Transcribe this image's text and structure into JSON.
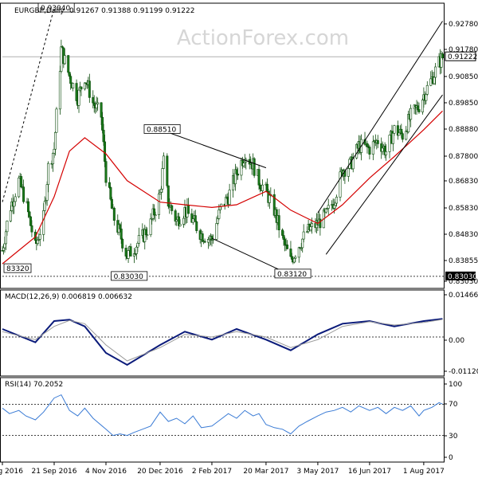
{
  "header": {
    "symbol": "EURGBP,Daily",
    "values": "0.91267 0.91388 0.91199 0.91222",
    "watermark": "ActionForex.com"
  },
  "chart_data": [
    {
      "type": "candlestick",
      "panel": "price",
      "y_ticks": [
        "0.92780",
        "0.91780",
        "0.90850",
        "0.89850",
        "0.88880",
        "0.87800",
        "0.86830",
        "0.85830",
        "0.84830",
        "0.83855",
        "0.83030"
      ],
      "ylim": [
        0.827,
        0.931
      ],
      "current_price": "0.91222",
      "support_level": "0.83030",
      "annotations": [
        {
          "label": "0.93040",
          "x": "21 Sep 2016",
          "y": 0.9304
        },
        {
          "label": "0.88510",
          "x": "20 Dec 2016",
          "y": 0.8851
        },
        {
          "label": "83320",
          "x": "8 Aug 2016",
          "y": 0.8332
        },
        {
          "label": "0.83030",
          "x": "22 Nov 2016",
          "y": 0.8303
        },
        {
          "label": "0.83120",
          "x": "10 Apr 2017",
          "y": 0.8312
        }
      ],
      "close_path": [
        [
          "8 Aug 2016",
          0.84
        ],
        [
          "14 Aug 2016",
          0.855
        ],
        [
          "22 Aug 2016",
          0.866
        ],
        [
          "28 Aug 2016",
          0.858
        ],
        [
          "5 Sep 2016",
          0.841
        ],
        [
          "12 Sep 2016",
          0.852
        ],
        [
          "16 Sep 2016",
          0.871
        ],
        [
          "21 Sep 2016",
          0.878
        ],
        [
          "27 Sep 2016",
          0.915
        ],
        [
          "4 Oct 2016",
          0.905
        ],
        [
          "11 Oct 2016",
          0.897
        ],
        [
          "17 Oct 2016",
          0.905
        ],
        [
          "24 Oct 2016",
          0.895
        ],
        [
          "31 Oct 2016",
          0.89
        ],
        [
          "4 Nov 2016",
          0.868
        ],
        [
          "10 Nov 2016",
          0.853
        ],
        [
          "16 Nov 2016",
          0.846
        ],
        [
          "22 Nov 2016",
          0.838
        ],
        [
          "28 Nov 2016",
          0.841
        ],
        [
          "5 Dec 2016",
          0.845
        ],
        [
          "12 Dec 2016",
          0.85
        ],
        [
          "20 Dec 2016",
          0.861
        ],
        [
          "23 Dec 2016",
          0.873
        ],
        [
          "27 Dec 2016",
          0.858
        ],
        [
          "3 Jan 2017",
          0.851
        ],
        [
          "10 Jan 2017",
          0.855
        ],
        [
          "17 Jan 2017",
          0.851
        ],
        [
          "24 Jan 2017",
          0.846
        ],
        [
          "2 Feb 2017",
          0.844
        ],
        [
          "9 Feb 2017",
          0.855
        ],
        [
          "16 Feb 2017",
          0.86
        ],
        [
          "23 Feb 2017",
          0.869
        ],
        [
          "2 Mar 2017",
          0.876
        ],
        [
          "9 Mar 2017",
          0.872
        ],
        [
          "14 Mar 2017",
          0.866
        ],
        [
          "20 Mar 2017",
          0.862
        ],
        [
          "27 Mar 2017",
          0.855
        ],
        [
          "3 Apr 2017",
          0.844
        ],
        [
          "10 Apr 2017",
          0.836
        ],
        [
          "17 Apr 2017",
          0.842
        ],
        [
          "24 Apr 2017",
          0.847
        ],
        [
          "3 May 2017",
          0.85
        ],
        [
          "10 May 2017",
          0.853
        ],
        [
          "17 May 2017",
          0.859
        ],
        [
          "24 May 2017",
          0.87
        ],
        [
          "31 May 2017",
          0.872
        ],
        [
          "7 Jun 2017",
          0.879
        ],
        [
          "16 Jun 2017",
          0.878
        ],
        [
          "23 Jun 2017",
          0.881
        ],
        [
          "30 Jun 2017",
          0.877
        ],
        [
          "7 Jul 2017",
          0.885
        ],
        [
          "14 Jul 2017",
          0.883
        ],
        [
          "21 Jul 2017",
          0.89
        ],
        [
          "28 Jul 2017",
          0.894
        ],
        [
          "1 Aug 2017",
          0.898
        ],
        [
          "8 Aug 2017",
          0.904
        ],
        [
          "14 Aug 2017",
          0.91
        ],
        [
          "17 Aug 2017",
          0.912
        ]
      ],
      "series": [
        {
          "name": "",
          "color": "#d40000",
          "points": [
            [
              "8 Aug 2016",
              0.835
            ],
            [
              "5 Sep 2016",
              0.845
            ],
            [
              "21 Sep 2016",
              0.86
            ],
            [
              "4 Oct 2016",
              0.877
            ],
            [
              "17 Oct 2016",
              0.882
            ],
            [
              "4 Nov 2016",
              0.876
            ],
            [
              "22 Nov 2016",
              0.866
            ],
            [
              "20 Dec 2016",
              0.858
            ],
            [
              "10 Jan 2017",
              0.857
            ],
            [
              "2 Feb 2017",
              0.856
            ],
            [
              "23 Feb 2017",
              0.857
            ],
            [
              "20 Mar 2017",
              0.862
            ],
            [
              "10 Apr 2017",
              0.855
            ],
            [
              "3 May 2017",
              0.85
            ],
            [
              "24 May 2017",
              0.857
            ],
            [
              "16 Jun 2017",
              0.867
            ],
            [
              "7 Jul 2017",
              0.875
            ],
            [
              "1 Aug 2017",
              0.885
            ],
            [
              "17 Aug 2017",
              0.892
            ]
          ]
        }
      ],
      "trendlines": [
        {
          "style": "dashed",
          "from": [
            "8 Aug 2016",
            0.858
          ],
          "to": [
            "21 Sep 2016",
            0.9304
          ]
        },
        {
          "style": "solid",
          "from": [
            "20 Dec 2016",
            0.8851
          ],
          "to": [
            "20 Mar 2017",
            0.8708
          ]
        },
        {
          "style": "solid",
          "from": [
            "2 Feb 2017",
            0.8445
          ],
          "to": [
            "10 Apr 2017",
            0.8308
          ]
        },
        {
          "style": "solid",
          "from": [
            "3 May 2017",
            0.854
          ],
          "to": [
            "17 Aug 2017",
            0.9255
          ]
        },
        {
          "style": "solid",
          "from": [
            "10 May 2017",
            0.8385
          ],
          "to": [
            "17 Aug 2017",
            0.898
          ]
        }
      ],
      "xticks": [
        "8 Aug 2016",
        "21 Sep 2016",
        "4 Nov 2016",
        "20 Dec 2016",
        "2 Feb 2017",
        "20 Mar 2017",
        "3 May 2017",
        "16 Jun 2017",
        "1 Aug 2017"
      ]
    },
    {
      "type": "line",
      "panel": "macd",
      "title": "MACD(12,26,9) 0.006819 0.006632",
      "y_ticks": [
        "0.014661",
        "0.00",
        "-0.011202"
      ],
      "ylim": [
        -0.0135,
        0.0165
      ],
      "series": [
        {
          "name": "MACD",
          "color": "#0a1a7a",
          "points": [
            [
              "8 Aug 2016",
              0.003
            ],
            [
              "5 Sep 2016",
              -0.002
            ],
            [
              "21 Sep 2016",
              0.006
            ],
            [
              "4 Oct 2016",
              0.0065
            ],
            [
              "17 Oct 2016",
              0.004
            ],
            [
              "4 Nov 2016",
              -0.006
            ],
            [
              "22 Nov 2016",
              -0.0105
            ],
            [
              "20 Dec 2016",
              -0.003
            ],
            [
              "10 Jan 2017",
              0.002
            ],
            [
              "2 Feb 2017",
              -0.001
            ],
            [
              "23 Feb 2017",
              0.003
            ],
            [
              "20 Mar 2017",
              -0.001
            ],
            [
              "10 Apr 2017",
              -0.005
            ],
            [
              "3 May 2017",
              0.001
            ],
            [
              "24 May 2017",
              0.005
            ],
            [
              "16 Jun 2017",
              0.006
            ],
            [
              "7 Jul 2017",
              0.004
            ],
            [
              "1 Aug 2017",
              0.006
            ],
            [
              "17 Aug 2017",
              0.0068
            ]
          ]
        },
        {
          "name": "Signal",
          "color": "#9a9a9a",
          "points": [
            [
              "8 Aug 2016",
              0.002
            ],
            [
              "5 Sep 2016",
              -0.001
            ],
            [
              "21 Sep 2016",
              0.004
            ],
            [
              "4 Oct 2016",
              0.0062
            ],
            [
              "17 Oct 2016",
              0.005
            ],
            [
              "4 Nov 2016",
              -0.003
            ],
            [
              "22 Nov 2016",
              -0.009
            ],
            [
              "20 Dec 2016",
              -0.004
            ],
            [
              "10 Jan 2017",
              0.001
            ],
            [
              "2 Feb 2017",
              0.0
            ],
            [
              "23 Feb 2017",
              0.002
            ],
            [
              "20 Mar 2017",
              0.0
            ],
            [
              "10 Apr 2017",
              -0.004
            ],
            [
              "3 May 2017",
              -0.001
            ],
            [
              "24 May 2017",
              0.004
            ],
            [
              "16 Jun 2017",
              0.0058
            ],
            [
              "7 Jul 2017",
              0.0045
            ],
            [
              "1 Aug 2017",
              0.0055
            ],
            [
              "17 Aug 2017",
              0.0066
            ]
          ]
        }
      ]
    },
    {
      "type": "line",
      "panel": "rsi",
      "title": "RSI(14) 70.2052",
      "y_ticks": [
        "100",
        "70",
        "30",
        "0"
      ],
      "ylim": [
        0,
        100
      ],
      "levels": [
        70,
        30
      ],
      "series": [
        {
          "name": "RSI",
          "color": "#3a7bd5",
          "points": [
            [
              "8 Aug 2016",
              65
            ],
            [
              "14 Aug 2016",
              58
            ],
            [
              "22 Aug 2016",
              62
            ],
            [
              "28 Aug 2016",
              55
            ],
            [
              "5 Sep 2016",
              50
            ],
            [
              "12 Sep 2016",
              60
            ],
            [
              "21 Sep 2016",
              78
            ],
            [
              "27 Sep 2016",
              82
            ],
            [
              "4 Oct 2016",
              62
            ],
            [
              "11 Oct 2016",
              55
            ],
            [
              "17 Oct 2016",
              65
            ],
            [
              "24 Oct 2016",
              52
            ],
            [
              "4 Nov 2016",
              38
            ],
            [
              "10 Nov 2016",
              30
            ],
            [
              "16 Nov 2016",
              32
            ],
            [
              "22 Nov 2016",
              30
            ],
            [
              "28 Nov 2016",
              34
            ],
            [
              "5 Dec 2016",
              38
            ],
            [
              "12 Dec 2016",
              42
            ],
            [
              "20 Dec 2016",
              60
            ],
            [
              "27 Dec 2016",
              48
            ],
            [
              "3 Jan 2017",
              52
            ],
            [
              "10 Jan 2017",
              45
            ],
            [
              "17 Jan 2017",
              55
            ],
            [
              "24 Jan 2017",
              40
            ],
            [
              "2 Feb 2017",
              42
            ],
            [
              "9 Feb 2017",
              50
            ],
            [
              "16 Feb 2017",
              58
            ],
            [
              "23 Feb 2017",
              52
            ],
            [
              "2 Mar 2017",
              62
            ],
            [
              "9 Mar 2017",
              55
            ],
            [
              "14 Mar 2017",
              58
            ],
            [
              "20 Mar 2017",
              44
            ],
            [
              "27 Mar 2017",
              40
            ],
            [
              "3 Apr 2017",
              38
            ],
            [
              "10 Apr 2017",
              32
            ],
            [
              "17 Apr 2017",
              42
            ],
            [
              "24 Apr 2017",
              48
            ],
            [
              "3 May 2017",
              55
            ],
            [
              "10 May 2017",
              60
            ],
            [
              "17 May 2017",
              62
            ],
            [
              "24 May 2017",
              66
            ],
            [
              "31 May 2017",
              60
            ],
            [
              "7 Jun 2017",
              68
            ],
            [
              "16 Jun 2017",
              62
            ],
            [
              "23 Jun 2017",
              66
            ],
            [
              "30 Jun 2017",
              58
            ],
            [
              "7 Jul 2017",
              66
            ],
            [
              "14 Jul 2017",
              62
            ],
            [
              "21 Jul 2017",
              68
            ],
            [
              "28 Jul 2017",
              55
            ],
            [
              "1 Aug 2017",
              62
            ],
            [
              "8 Aug 2017",
              66
            ],
            [
              "14 Aug 2017",
              72
            ],
            [
              "17 Aug 2017",
              70.2
            ]
          ]
        }
      ]
    }
  ]
}
